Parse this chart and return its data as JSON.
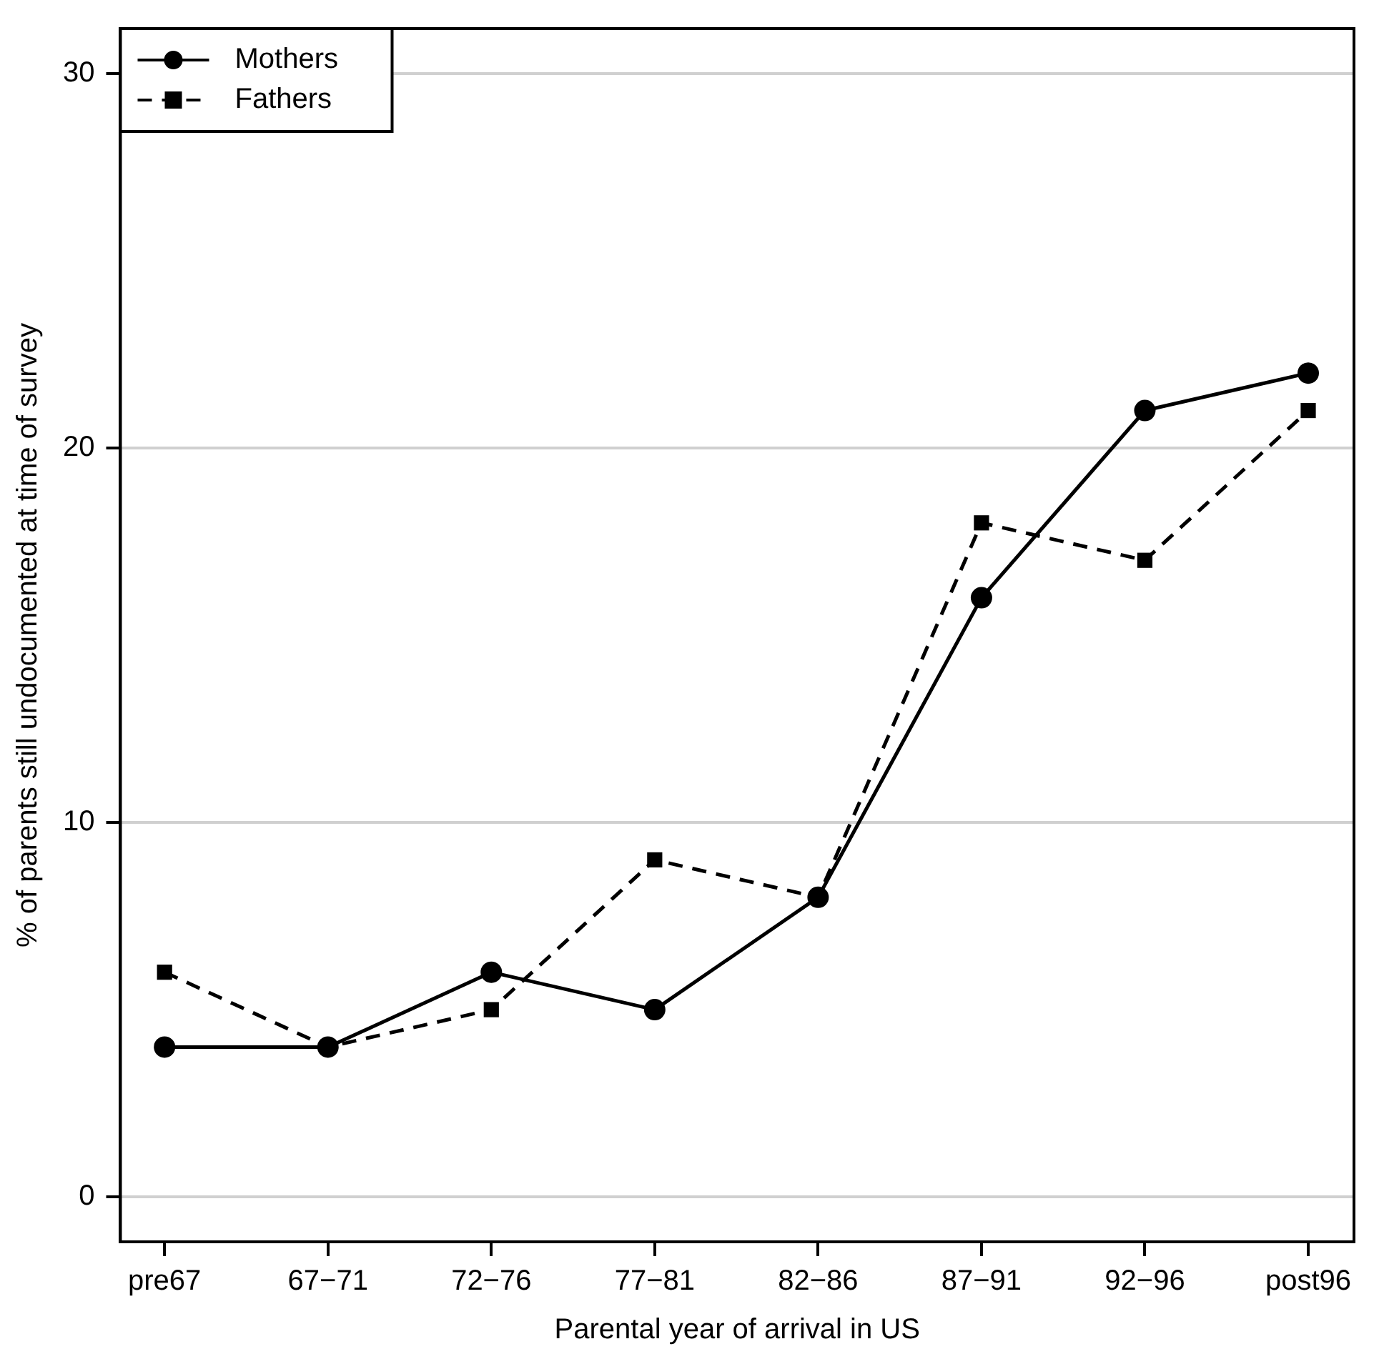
{
  "chart_data": {
    "type": "line",
    "xlabel": "Parental year of arrival in US",
    "ylabel": "% of parents still undocumented at time of survey",
    "categories": [
      "pre67",
      "67−71",
      "72−76",
      "77−81",
      "82−86",
      "87−91",
      "92−96",
      "post96"
    ],
    "series": [
      {
        "name": "Mothers",
        "color": "#000000",
        "marker": "circle",
        "line_style": "solid",
        "values": [
          4,
          4,
          6,
          5,
          8,
          16,
          21,
          22
        ]
      },
      {
        "name": "Fathers",
        "color": "#000000",
        "marker": "square",
        "line_style": "dashed",
        "values": [
          6,
          4,
          5,
          9,
          8,
          18,
          17,
          21
        ]
      }
    ],
    "ylim": [
      -1.2,
      31.2
    ],
    "yticks": [
      0,
      10,
      20,
      30
    ],
    "grid": "y",
    "legend": "top left"
  }
}
